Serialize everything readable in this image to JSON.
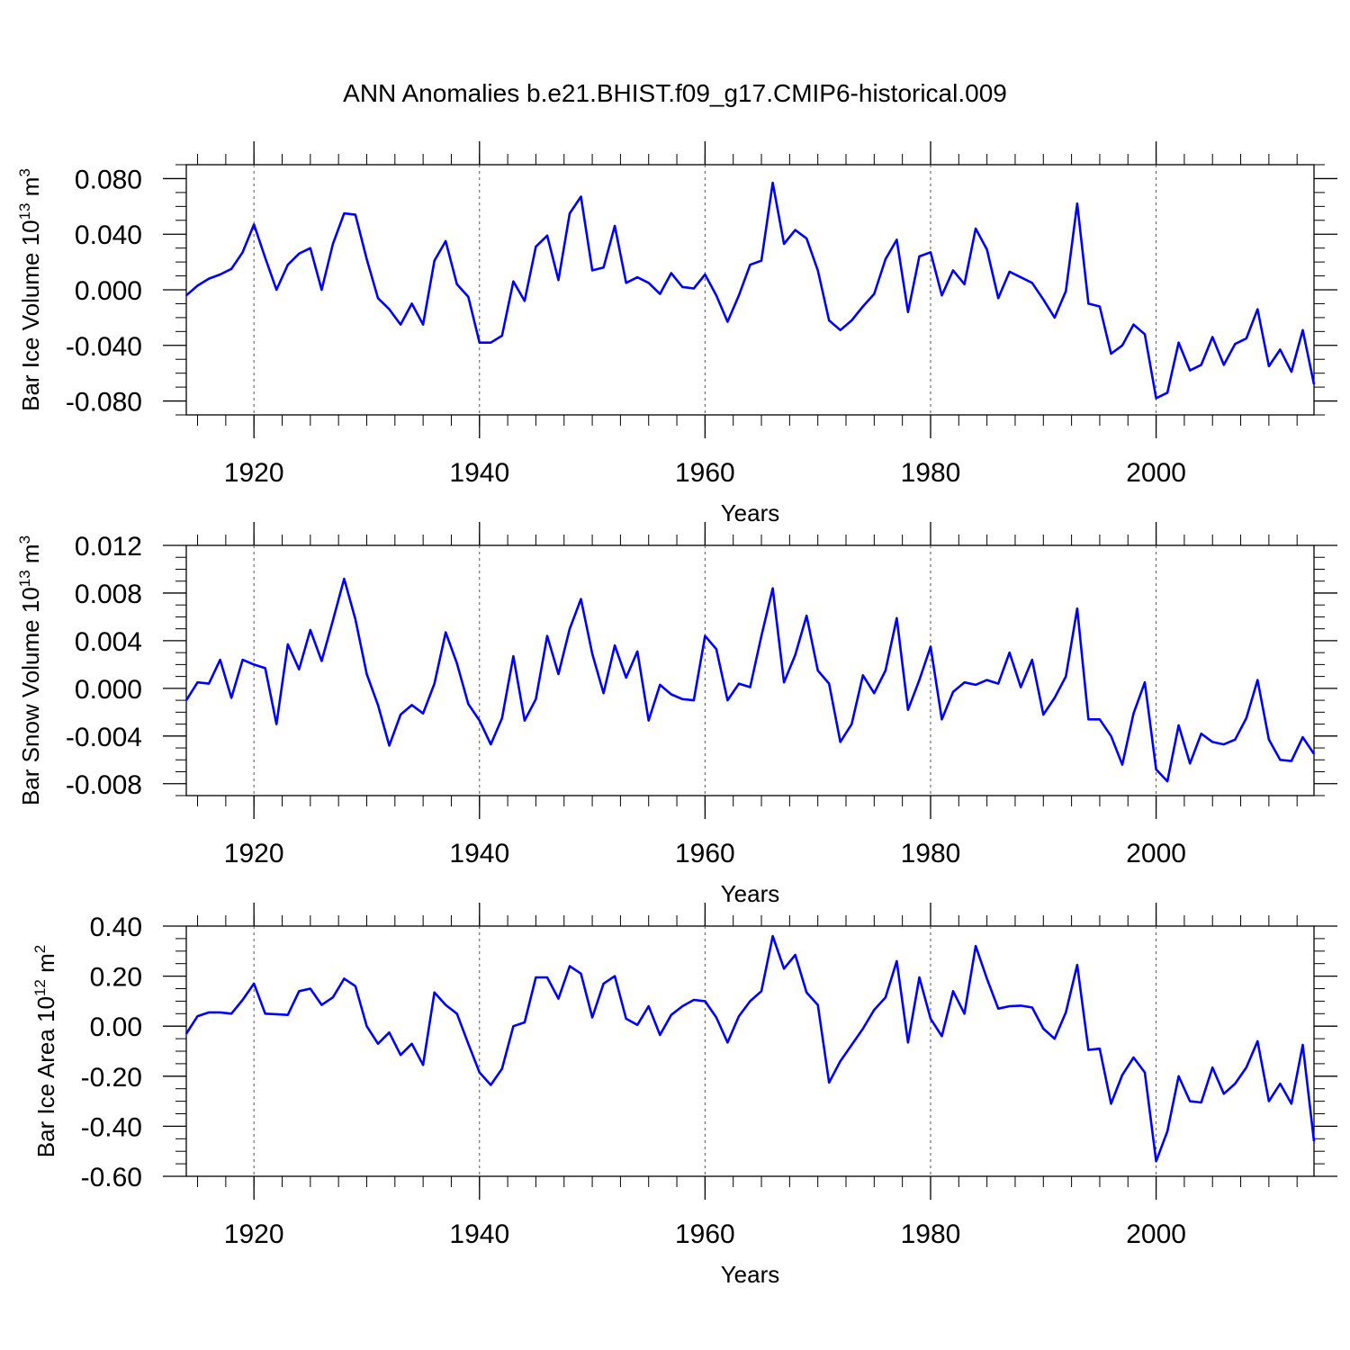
{
  "title": "ANN Anomalies b.e21.BHIST.f09_g17.CMIP6-historical.009",
  "line_color": "#0000ff",
  "chart_data": [
    {
      "type": "line",
      "ylabel": "Bar Ice Volume 10",
      "ylabel_exp": "13",
      "ylabel_unit": " m",
      "ylabel_unit_exp": "3",
      "xlabel": "Years",
      "xlim": [
        1914,
        2014
      ],
      "ylim": [
        -0.09,
        0.09
      ],
      "yticks": [
        0.08,
        0.04,
        0.0,
        -0.04,
        -0.08
      ],
      "ytick_labels": [
        "0.080",
        "0.040",
        "0.000",
        "-0.040",
        "-0.080"
      ],
      "yminor": [
        0.09,
        0.07,
        0.06,
        0.05,
        0.03,
        0.02,
        0.01,
        -0.01,
        -0.02,
        -0.03,
        -0.05,
        -0.06,
        -0.07,
        -0.09
      ],
      "xticks": [
        1920,
        1940,
        1960,
        1980,
        2000
      ],
      "xtick_labels": [
        "1920",
        "1940",
        "1960",
        "1980",
        "2000"
      ],
      "x_start": 1914,
      "values": [
        -0.004,
        0.003,
        0.008,
        0.011,
        0.015,
        0.027,
        0.047,
        0.023,
        0.0,
        0.018,
        0.026,
        0.03,
        0.0,
        0.033,
        0.055,
        0.054,
        0.022,
        -0.006,
        -0.014,
        -0.025,
        -0.01,
        -0.025,
        0.021,
        0.035,
        0.004,
        -0.005,
        -0.038,
        -0.038,
        -0.033,
        0.006,
        -0.008,
        0.031,
        0.039,
        0.007,
        0.055,
        0.067,
        0.014,
        0.016,
        0.046,
        0.005,
        0.009,
        0.005,
        -0.003,
        0.012,
        0.002,
        0.001,
        0.011,
        -0.004,
        -0.023,
        -0.004,
        0.018,
        0.021,
        0.077,
        0.033,
        0.043,
        0.037,
        0.014,
        -0.022,
        -0.029,
        -0.022,
        -0.012,
        -0.003,
        0.022,
        0.036,
        -0.016,
        0.024,
        0.027,
        -0.004,
        0.014,
        0.004,
        0.044,
        0.029,
        -0.006,
        0.013,
        0.009,
        0.005,
        -0.007,
        -0.02,
        -0.001,
        0.062,
        -0.01,
        -0.012,
        -0.046,
        -0.04,
        -0.025,
        -0.032,
        -0.078,
        -0.074,
        -0.038,
        -0.058,
        -0.054,
        -0.034,
        -0.054,
        -0.039,
        -0.035,
        -0.014,
        -0.055,
        -0.043,
        -0.059,
        -0.029,
        -0.068
      ]
    },
    {
      "type": "line",
      "ylabel": "Bar Snow Volume 10",
      "ylabel_exp": "13",
      "ylabel_unit": " m",
      "ylabel_unit_exp": "3",
      "xlabel": "Years",
      "xlim": [
        1914,
        2014
      ],
      "ylim": [
        -0.009,
        0.012
      ],
      "yticks": [
        0.012,
        0.008,
        0.004,
        0.0,
        -0.004,
        -0.008
      ],
      "ytick_labels": [
        "0.012",
        "0.008",
        "0.004",
        "0.000",
        "-0.004",
        "-0.008"
      ],
      "yminor": [
        0.011,
        0.01,
        0.009,
        0.007,
        0.006,
        0.005,
        0.003,
        0.002,
        0.001,
        -0.001,
        -0.002,
        -0.003,
        -0.005,
        -0.006,
        -0.007,
        -0.009
      ],
      "xticks": [
        1920,
        1940,
        1960,
        1980,
        2000
      ],
      "xtick_labels": [
        "1920",
        "1940",
        "1960",
        "1980",
        "2000"
      ],
      "x_start": 1914,
      "values": [
        -0.001,
        0.0005,
        0.0004,
        0.0024,
        -0.0008,
        0.0024,
        0.002,
        0.0017,
        -0.003,
        0.0037,
        0.0016,
        0.0049,
        0.0023,
        0.0057,
        0.0092,
        0.0058,
        0.0012,
        -0.0014,
        -0.0048,
        -0.0022,
        -0.0014,
        -0.0021,
        0.0004,
        0.0047,
        0.0021,
        -0.0013,
        -0.0027,
        -0.0047,
        -0.0025,
        0.0027,
        -0.0027,
        -0.0009,
        0.0044,
        0.0012,
        0.005,
        0.0075,
        0.0029,
        -0.0004,
        0.0036,
        0.0009,
        0.0031,
        -0.0027,
        0.0003,
        -0.0005,
        -0.0009,
        -0.001,
        0.0044,
        0.0033,
        -0.001,
        0.0004,
        0.0001,
        0.0044,
        0.0084,
        0.0005,
        0.0028,
        0.0061,
        0.0015,
        0.0004,
        -0.0045,
        -0.003,
        0.0011,
        -0.0004,
        0.0015,
        0.0059,
        -0.0018,
        0.0007,
        0.0035,
        -0.0026,
        -0.0003,
        0.0005,
        0.0003,
        0.0007,
        0.0004,
        0.003,
        0.0001,
        0.0024,
        -0.0022,
        -0.0008,
        0.001,
        0.0067,
        -0.0026,
        -0.0026,
        -0.004,
        -0.0064,
        -0.0021,
        0.0005,
        -0.0068,
        -0.0078,
        -0.0031,
        -0.0063,
        -0.0038,
        -0.0045,
        -0.0047,
        -0.0043,
        -0.0025,
        0.0007,
        -0.0043,
        -0.006,
        -0.0061,
        -0.0041,
        -0.0055
      ]
    },
    {
      "type": "line",
      "ylabel": "Bar Ice Area 10",
      "ylabel_exp": "12",
      "ylabel_unit": " m",
      "ylabel_unit_exp": "2",
      "xlabel": "Years",
      "xlim": [
        1914,
        2014
      ],
      "ylim": [
        -0.6,
        0.4
      ],
      "yticks": [
        0.4,
        0.2,
        0.0,
        -0.2,
        -0.4,
        -0.6
      ],
      "ytick_labels": [
        "0.40",
        "0.20",
        "0.00",
        "-0.20",
        "-0.40",
        "-0.60"
      ],
      "yminor": [
        0.35,
        0.3,
        0.25,
        0.15,
        0.1,
        0.05,
        -0.05,
        -0.1,
        -0.15,
        -0.25,
        -0.3,
        -0.35,
        -0.45,
        -0.5,
        -0.55
      ],
      "xticks": [
        1920,
        1940,
        1960,
        1980,
        2000
      ],
      "xtick_labels": [
        "1920",
        "1940",
        "1960",
        "1980",
        "2000"
      ],
      "x_start": 1914,
      "values": [
        -0.03,
        0.04,
        0.055,
        0.055,
        0.05,
        0.105,
        0.17,
        0.05,
        0.048,
        0.045,
        0.14,
        0.15,
        0.085,
        0.115,
        0.19,
        0.16,
        0.0,
        -0.07,
        -0.025,
        -0.115,
        -0.07,
        -0.155,
        0.135,
        0.085,
        0.05,
        -0.07,
        -0.185,
        -0.235,
        -0.17,
        0.0,
        0.015,
        0.195,
        0.195,
        0.11,
        0.24,
        0.21,
        0.035,
        0.17,
        0.2,
        0.03,
        0.005,
        0.08,
        -0.035,
        0.045,
        0.08,
        0.105,
        0.1,
        0.035,
        -0.065,
        0.04,
        0.1,
        0.14,
        0.36,
        0.23,
        0.285,
        0.135,
        0.085,
        -0.225,
        -0.14,
        -0.075,
        -0.01,
        0.065,
        0.115,
        0.26,
        -0.065,
        0.195,
        0.03,
        -0.04,
        0.14,
        0.05,
        0.32,
        0.19,
        0.07,
        0.08,
        0.082,
        0.075,
        -0.01,
        -0.05,
        0.055,
        0.245,
        -0.095,
        -0.09,
        -0.31,
        -0.195,
        -0.125,
        -0.185,
        -0.54,
        -0.42,
        -0.2,
        -0.3,
        -0.305,
        -0.165,
        -0.27,
        -0.23,
        -0.165,
        -0.06,
        -0.3,
        -0.23,
        -0.31,
        -0.075,
        -0.46
      ]
    }
  ]
}
